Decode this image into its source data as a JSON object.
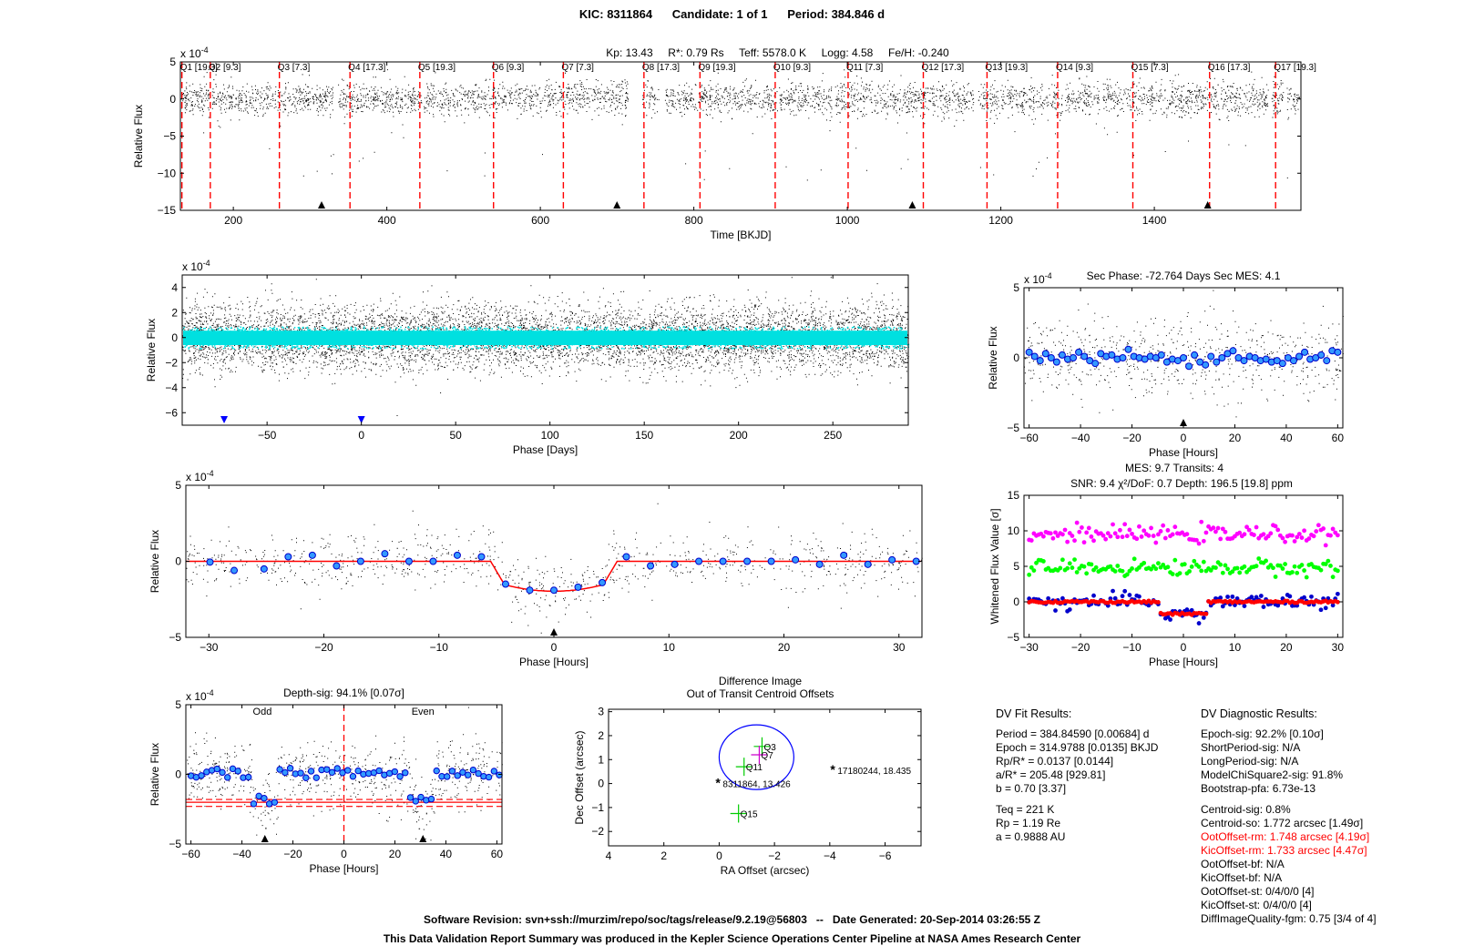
{
  "header": {
    "kic": "KIC: 8311864",
    "candidate": "Candidate: 1 of 1",
    "period": "Period: 384.846 d",
    "stellar": "Kp: 13.43     R*: 0.79 Rs     Teff: 5578.0 K     Logg: 4.58     Fe/H: -0.240"
  },
  "chart_data": [
    {
      "id": "full_light_curve",
      "type": "scatter",
      "ylabel": "Relative Flux",
      "xlabel": "Time [BKJD]",
      "yscale_label": "x 10^-4",
      "xlim": [
        131,
        1591
      ],
      "ylim": [
        -15,
        5
      ],
      "xticks": [
        200,
        400,
        600,
        800,
        1000,
        1200,
        1400
      ],
      "yticks": [
        5,
        0,
        -5,
        -10,
        -15
      ],
      "quarters": [
        {
          "label": "Q1 [19.3]",
          "x": 133
        },
        {
          "label": "Q2 [9.3]",
          "x": 170
        },
        {
          "label": "Q3 [7.3]",
          "x": 260
        },
        {
          "label": "Q4 [17.3]",
          "x": 352
        },
        {
          "label": "Q5 [19.3]",
          "x": 443
        },
        {
          "label": "Q6 [9.3]",
          "x": 539
        },
        {
          "label": "Q7 [7.3]",
          "x": 630
        },
        {
          "label": "Q8 [17.3]",
          "x": 735
        },
        {
          "label": "Q9 [19.3]",
          "x": 808
        },
        {
          "label": "Q10 [9.3]",
          "x": 906
        },
        {
          "label": "Q11 [7.3]",
          "x": 1001
        },
        {
          "label": "Q12 [17.3]",
          "x": 1099
        },
        {
          "label": "Q13 [19.3]",
          "x": 1182
        },
        {
          "label": "Q14 [9.3]",
          "x": 1274
        },
        {
          "label": "Q15 [7.3]",
          "x": 1372
        },
        {
          "label": "Q16 [17.3]",
          "x": 1472
        },
        {
          "label": "Q17 [19.3]",
          "x": 1558
        }
      ],
      "transit_markers_x": [
        314.98,
        699.82,
        1084.67,
        1469.52
      ],
      "gaps": [
        [
          168,
          172
        ],
        [
          330,
          336
        ],
        [
          445,
          448
        ],
        [
          714,
          733
        ],
        [
          754,
          762
        ],
        [
          980,
          984
        ],
        [
          1165,
          1170
        ],
        [
          1280,
          1283
        ],
        [
          1328,
          1332
        ],
        [
          1548,
          1552
        ],
        [
          1568,
          1572
        ]
      ]
    },
    {
      "id": "folded_days",
      "type": "scatter",
      "ylabel": "Relative Flux",
      "xlabel": "Phase [Days]",
      "yscale_label": "x 10^-4",
      "xlim": [
        -95,
        290
      ],
      "ylim": [
        -7,
        5
      ],
      "xticks": [
        -50,
        0,
        50,
        100,
        150,
        200,
        250
      ],
      "yticks": [
        4,
        2,
        0,
        -2,
        -4,
        -6
      ],
      "markers_x": [
        -72.764,
        0
      ]
    },
    {
      "id": "secondary",
      "type": "scatter",
      "title": "Sec Phase: -72.764 Days  Sec MES: 4.1",
      "ylabel": "Relative Flux",
      "xlabel": "Phase [Hours]",
      "yscale_label": "x 10^-4",
      "xlim": [
        -62,
        62
      ],
      "ylim": [
        -5,
        5
      ],
      "xticks": [
        -60,
        -40,
        -20,
        0,
        20,
        40,
        60
      ],
      "yticks": [
        5,
        0,
        -5
      ],
      "binned_y": [
        0.4,
        0.1,
        -0.2,
        0.3,
        0.0,
        -0.3,
        0.2,
        -0.1,
        0.0,
        0.4,
        0.1,
        -0.2,
        -0.4,
        0.3,
        0.1,
        0.2,
        -0.1,
        0.0,
        0.6,
        0.1,
        0.0,
        -0.1,
        0.1,
        0.0,
        0.2,
        -0.3,
        -0.1,
        -0.2,
        0.0,
        -0.6,
        0.2,
        -0.3,
        -0.5,
        0.1,
        -0.3,
        0.0,
        0.3,
        0.5,
        0.0,
        -0.2,
        0.1,
        0.0,
        -0.2,
        -0.1,
        -0.3,
        -0.2,
        -0.4,
        0.0,
        -0.2,
        0.1,
        0.4,
        -0.1,
        0.0,
        0.2,
        -0.2,
        0.5,
        0.4
      ]
    },
    {
      "id": "transit_zoom",
      "type": "scatter",
      "ylabel": "Relative Flux",
      "xlabel": "Phase [Hours]",
      "yscale_label": "x 10^-4",
      "xlim": [
        -32,
        32
      ],
      "ylim": [
        -5,
        5
      ],
      "xticks": [
        -30,
        -20,
        -10,
        0,
        10,
        20,
        30
      ],
      "yticks": [
        5,
        0,
        -5
      ],
      "binned": [
        [
          -29.9,
          -0.05
        ],
        [
          -27.8,
          -0.6
        ],
        [
          -25.2,
          -0.5
        ],
        [
          -23.1,
          0.3
        ],
        [
          -21.0,
          0.4
        ],
        [
          -18.9,
          -0.3
        ],
        [
          -16.8,
          0.0
        ],
        [
          -14.7,
          0.5
        ],
        [
          -12.6,
          0.0
        ],
        [
          -10.5,
          0.0
        ],
        [
          -8.4,
          0.4
        ],
        [
          -6.3,
          0.3
        ],
        [
          -4.2,
          -1.5
        ],
        [
          -2.1,
          -1.9
        ],
        [
          0.0,
          -1.9
        ],
        [
          2.1,
          -1.7
        ],
        [
          4.2,
          -1.4
        ],
        [
          6.3,
          0.3
        ],
        [
          8.4,
          -0.3
        ],
        [
          10.5,
          -0.2
        ],
        [
          12.6,
          0.0
        ],
        [
          14.7,
          0.0
        ],
        [
          16.8,
          0.0
        ],
        [
          18.9,
          0.0
        ],
        [
          21.0,
          0.1
        ],
        [
          23.1,
          -0.2
        ],
        [
          25.2,
          0.4
        ],
        [
          27.3,
          -0.2
        ],
        [
          29.4,
          0.1
        ],
        [
          31.5,
          0.0
        ]
      ],
      "model_depth": -1.965,
      "model_half_duration": 5.5
    },
    {
      "id": "whitened",
      "type": "scatter",
      "title_line1": "MES: 9.7     Transits: 4",
      "title_line2": "SNR: 9.4    χ²/DoF: 0.7    Depth: 196.5 [19.8] ppm",
      "ylabel": "Whitened Flux Value [σ]",
      "xlabel": "Phase [Hours]",
      "xlim": [
        -31,
        31
      ],
      "ylim": [
        -5,
        15
      ],
      "xticks": [
        -30,
        -20,
        -10,
        0,
        10,
        20,
        30
      ],
      "yticks": [
        15,
        10,
        5,
        0,
        -5
      ],
      "series": [
        {
          "color": "#ff00ff",
          "offset": 9.5
        },
        {
          "color": "#00ff00",
          "offset": 4.8
        },
        {
          "color": "#0000cc",
          "offset": 0.0
        },
        {
          "color": "#ff0000",
          "offset": 0.0
        }
      ]
    },
    {
      "id": "odd_even",
      "type": "scatter",
      "title": "Depth-sig: 94.1% [0.07σ]",
      "ylabel": "Relative Flux",
      "xlabel": "Phase [Hours]",
      "yscale_label": "x 10^-4",
      "odd_label": "Odd",
      "even_label": "Even",
      "xlim": [
        -62,
        62
      ],
      "ylim": [
        -5,
        5
      ],
      "xticks": [
        -60,
        -40,
        -20,
        0,
        20,
        40,
        60
      ],
      "yticks": [
        5,
        0,
        -5
      ],
      "depth_level": -2.0,
      "depth_band": [
        -1.8,
        -2.3
      ]
    },
    {
      "id": "centroid",
      "type": "scatter",
      "title_line1": "Difference Image",
      "title_line2": "Out of Transit Centroid Offsets",
      "ylabel": "Dec Offset (arcsec)",
      "xlabel": "RA Offset (arcsec)",
      "xlim": [
        4,
        -7.3
      ],
      "ylim": [
        -2.6,
        3.1
      ],
      "xticks": [
        4,
        2,
        0,
        -2,
        -4,
        -6
      ],
      "yticks": [
        3,
        2,
        1,
        0,
        -1,
        -2
      ],
      "circle": {
        "cx": -1.35,
        "cy": 1.1,
        "r": 1.35
      },
      "crosses": [
        {
          "label": "Q3",
          "x": -1.55,
          "y": 1.55
        },
        {
          "label": "Q7",
          "x": -1.45,
          "y": 1.2
        },
        {
          "label": "Q11",
          "x": -0.9,
          "y": 0.7
        },
        {
          "label": "Q15",
          "x": -0.7,
          "y": -1.25
        }
      ],
      "stars": [
        {
          "label": "8311864, 13.426",
          "x": 0.0,
          "y": 0.0,
          "color": "#ff0000"
        },
        {
          "label": "17180244, 18.435",
          "x": -4.15,
          "y": 0.55,
          "color": "#0000ff"
        }
      ]
    }
  ],
  "fit_results": {
    "title": "DV Fit Results:",
    "lines": [
      "Period = 384.84590 [0.00684] d",
      "Epoch = 314.9788 [0.0135] BKJD",
      "Rp/R* = 0.0137 [0.0144]",
      "a/R* = 205.48 [929.81]",
      "b = 0.70 [3.37]",
      "",
      "Teq = 221 K",
      "Rp = 1.19 Re",
      "a = 0.9888 AU"
    ]
  },
  "diagnostic_results": {
    "title": "DV Diagnostic Results:",
    "lines": [
      {
        "text": "Epoch-sig: 92.2% [0.10σ]",
        "color": "#000000"
      },
      {
        "text": "ShortPeriod-sig: N/A",
        "color": "#000000"
      },
      {
        "text": "LongPeriod-sig: N/A",
        "color": "#000000"
      },
      {
        "text": "ModelChiSquare2-sig: 91.8%",
        "color": "#000000"
      },
      {
        "text": "Bootstrap-pfa: 6.73e-13",
        "color": "#000000"
      },
      {
        "text": "",
        "color": "#000000"
      },
      {
        "text": "Centroid-sig: 0.8%",
        "color": "#000000"
      },
      {
        "text": "Centroid-so: 1.772 arcsec [1.49σ]",
        "color": "#000000"
      },
      {
        "text": "OotOffset-rm: 1.748 arcsec [4.19σ]",
        "color": "#ff0000"
      },
      {
        "text": "KicOffset-rm: 1.733 arcsec [4.47σ]",
        "color": "#ff0000"
      },
      {
        "text": "OotOffset-bf: N/A",
        "color": "#000000"
      },
      {
        "text": "KicOffset-bf: N/A",
        "color": "#000000"
      },
      {
        "text": "OotOffset-st: 0/4/0/0 [4]",
        "color": "#000000"
      },
      {
        "text": "KicOffset-st: 0/4/0/0 [4]",
        "color": "#000000"
      },
      {
        "text": "DiffImageQuality-fgm: 0.75 [3/4 of 4]",
        "color": "#000000"
      }
    ]
  },
  "footer": {
    "line1": "Software Revision: svn+ssh://murzim/repo/soc/tags/release/9.2.19@56803   --   Date Generated: 20-Sep-2014 03:26:55 Z",
    "line2": "This Data Validation Report Summary was produced in the Kepler Science Operations Center Pipeline at NASA Ames Research Center"
  }
}
